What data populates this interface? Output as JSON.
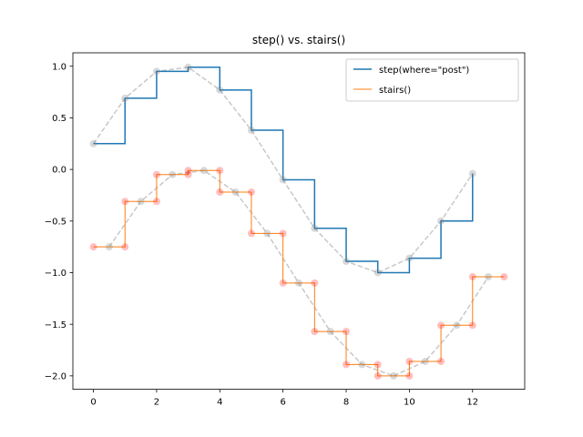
{
  "chart_data": {
    "type": "line",
    "title": "step() vs. stairs()",
    "xlabel": "",
    "ylabel": "",
    "xlim": [
      -0.65,
      13.65
    ],
    "ylim": [
      -2.13,
      1.13
    ],
    "xticks": [
      0,
      2,
      4,
      6,
      8,
      10,
      12
    ],
    "yticks": [
      1.0,
      0.5,
      0.0,
      -0.5,
      -1.0,
      -1.5,
      -2.0
    ],
    "ytick_labels": [
      "1.0",
      "0.5",
      "0.0",
      "−0.5",
      "−1.0",
      "−1.5",
      "−2.0"
    ],
    "grid": false,
    "legend_position": "upper right",
    "series": [
      {
        "name": "step(where=\"post\")",
        "color": "#1f77b4",
        "x": [
          0,
          1,
          2,
          3,
          4,
          5,
          6,
          7,
          8,
          9,
          10,
          11,
          12
        ],
        "values": [
          0.25,
          0.69,
          0.95,
          0.99,
          0.77,
          0.38,
          -0.1,
          -0.57,
          -0.89,
          -1.0,
          -0.86,
          -0.5,
          -0.04
        ]
      },
      {
        "name": "stairs()",
        "color": "#ff7f0e",
        "edges": [
          0,
          1,
          2,
          3,
          4,
          5,
          6,
          7,
          8,
          9,
          10,
          11,
          12,
          13
        ],
        "values": [
          -0.75,
          -0.31,
          -0.05,
          -0.01,
          -0.22,
          -0.62,
          -1.1,
          -1.57,
          -1.89,
          -2.0,
          -1.86,
          -1.51,
          -1.04
        ]
      }
    ],
    "markers": {
      "step_points": {
        "color": "#808080",
        "x": [
          0,
          1,
          2,
          3,
          4,
          5,
          6,
          7,
          8,
          9,
          10,
          11,
          12
        ]
      },
      "stairs_edge_points": {
        "color": "#ff0000"
      },
      "stairs_center_points": {
        "color": "#808080",
        "x": [
          0.5,
          1.5,
          2.5,
          3.5,
          4.5,
          5.5,
          6.5,
          7.5,
          8.5,
          9.5,
          10.5,
          11.5,
          12.5
        ]
      }
    }
  }
}
